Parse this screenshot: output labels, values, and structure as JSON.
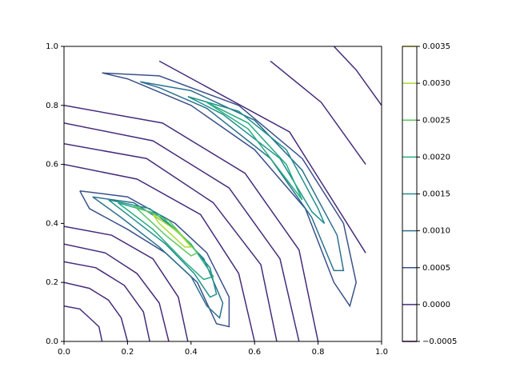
{
  "chart_data": {
    "type": "contour",
    "xlim": [
      0,
      1
    ],
    "ylim": [
      0,
      1
    ],
    "xticks": [
      {
        "value": 0,
        "label": "0.0"
      },
      {
        "value": 0.2,
        "label": "0.2"
      },
      {
        "value": 0.4,
        "label": "0.4"
      },
      {
        "value": 0.6,
        "label": "0.6"
      },
      {
        "value": 0.8,
        "label": "0.8"
      },
      {
        "value": 1,
        "label": "1.0"
      }
    ],
    "yticks": [
      {
        "value": 0,
        "label": "0.0"
      },
      {
        "value": 0.2,
        "label": "0.2"
      },
      {
        "value": 0.4,
        "label": "0.4"
      },
      {
        "value": 0.6,
        "label": "0.6"
      },
      {
        "value": 0.8,
        "label": "0.8"
      },
      {
        "value": 1,
        "label": "1.0"
      }
    ],
    "colorbar": {
      "lim": [
        -0.0005,
        0.0035
      ],
      "ticks": [
        {
          "value": -0.0005,
          "label": "−0.0005"
        },
        {
          "value": 0,
          "label": "0.0000"
        },
        {
          "value": 0.0005,
          "label": "0.0005"
        },
        {
          "value": 0.001,
          "label": "0.0010"
        },
        {
          "value": 0.0015,
          "label": "0.0015"
        },
        {
          "value": 0.002,
          "label": "0.0020"
        },
        {
          "value": 0.0025,
          "label": "0.0025"
        },
        {
          "value": 0.003,
          "label": "0.0030"
        },
        {
          "value": 0.0035,
          "label": "0.0035"
        }
      ],
      "colors": [
        "#440154",
        "#472c7a",
        "#3b518b",
        "#2c718e",
        "#21908d",
        "#27ad81",
        "#5cc863",
        "#aadc32",
        "#fde725"
      ]
    },
    "contours": [
      {
        "color": "#472c7a",
        "x": [
          0,
          0.05,
          0.08,
          0.11,
          0.12
        ],
        "y": [
          0.12,
          0.11,
          0.08,
          0.05,
          0
        ]
      },
      {
        "color": "#472c7a",
        "x": [
          0,
          0.08,
          0.14,
          0.18,
          0.2
        ],
        "y": [
          0.2,
          0.18,
          0.14,
          0.08,
          0
        ]
      },
      {
        "color": "#472c7a",
        "x": [
          0,
          0.1,
          0.19,
          0.25,
          0.27
        ],
        "y": [
          0.27,
          0.25,
          0.19,
          0.1,
          0
        ]
      },
      {
        "color": "#472c7a",
        "x": [
          0,
          0.13,
          0.23,
          0.3,
          0.33
        ],
        "y": [
          0.33,
          0.3,
          0.23,
          0.13,
          0
        ]
      },
      {
        "color": "#472c7a",
        "x": [
          0,
          0.15,
          0.28,
          0.36,
          0.39
        ],
        "y": [
          0.39,
          0.36,
          0.28,
          0.15,
          0
        ]
      },
      {
        "color": "#472c7a",
        "x": [
          0,
          0.23,
          0.43,
          0.55,
          0.6
        ],
        "y": [
          0.6,
          0.55,
          0.43,
          0.23,
          0
        ]
      },
      {
        "color": "#472c7a",
        "x": [
          0,
          0.26,
          0.47,
          0.62,
          0.67
        ],
        "y": [
          0.67,
          0.62,
          0.47,
          0.26,
          0
        ]
      },
      {
        "color": "#472c7a",
        "x": [
          0,
          0.28,
          0.52,
          0.68,
          0.74
        ],
        "y": [
          0.74,
          0.68,
          0.52,
          0.28,
          0
        ]
      },
      {
        "color": "#472c7a",
        "x": [
          0,
          0.31,
          0.57,
          0.74,
          0.8
        ],
        "y": [
          0.8,
          0.74,
          0.57,
          0.31,
          0
        ]
      },
      {
        "color": "#472c7a",
        "x": [
          0.3,
          0.71,
          0.95
        ],
        "y": [
          0.95,
          0.71,
          0.3
        ]
      },
      {
        "color": "#472c7a",
        "x": [
          0.65,
          0.81,
          0.95
        ],
        "y": [
          0.95,
          0.81,
          0.6
        ]
      },
      {
        "color": "#472c7a",
        "x": [
          0.85,
          0.92,
          1
        ],
        "y": [
          1,
          0.92,
          0.8
        ]
      },
      {
        "color": "#3b518b",
        "x": [
          0.05,
          0.2,
          0.35,
          0.45,
          0.52,
          0.52,
          0.48,
          0.42,
          0.32,
          0.2,
          0.08,
          0.05
        ],
        "y": [
          0.51,
          0.49,
          0.4,
          0.3,
          0.15,
          0.05,
          0.06,
          0.2,
          0.3,
          0.38,
          0.45,
          0.51
        ]
      },
      {
        "color": "#2c718e",
        "x": [
          0.09,
          0.22,
          0.35,
          0.44,
          0.5,
          0.49,
          0.45,
          0.4,
          0.3,
          0.18,
          0.09
        ],
        "y": [
          0.49,
          0.47,
          0.38,
          0.28,
          0.13,
          0.08,
          0.12,
          0.22,
          0.32,
          0.42,
          0.49
        ]
      },
      {
        "color": "#21908d",
        "x": [
          0.14,
          0.27,
          0.38,
          0.46,
          0.48,
          0.46,
          0.41,
          0.32,
          0.2,
          0.14
        ],
        "y": [
          0.48,
          0.45,
          0.35,
          0.25,
          0.16,
          0.15,
          0.23,
          0.33,
          0.43,
          0.48
        ]
      },
      {
        "color": "#27ad81",
        "x": [
          0.17,
          0.3,
          0.4,
          0.47,
          0.44,
          0.38,
          0.28,
          0.17
        ],
        "y": [
          0.47,
          0.43,
          0.33,
          0.22,
          0.21,
          0.27,
          0.38,
          0.47
        ]
      },
      {
        "color": "#5cc863",
        "x": [
          0.22,
          0.33,
          0.42,
          0.4,
          0.32,
          0.22
        ],
        "y": [
          0.46,
          0.41,
          0.3,
          0.29,
          0.36,
          0.46
        ]
      },
      {
        "color": "#aadc32",
        "x": [
          0.28,
          0.36,
          0.4,
          0.38,
          0.3,
          0.28
        ],
        "y": [
          0.43,
          0.37,
          0.32,
          0.32,
          0.4,
          0.43
        ]
      },
      {
        "color": "#3b518b",
        "x": [
          0.12,
          0.3,
          0.55,
          0.75,
          0.88,
          0.92,
          0.9,
          0.85,
          0.76,
          0.6,
          0.4,
          0.2,
          0.12
        ],
        "y": [
          0.91,
          0.9,
          0.8,
          0.62,
          0.4,
          0.2,
          0.12,
          0.2,
          0.45,
          0.65,
          0.8,
          0.89,
          0.91
        ]
      },
      {
        "color": "#2c718e",
        "x": [
          0.24,
          0.4,
          0.6,
          0.75,
          0.86,
          0.88,
          0.85,
          0.78,
          0.65,
          0.45,
          0.3,
          0.24
        ],
        "y": [
          0.88,
          0.85,
          0.75,
          0.58,
          0.36,
          0.24,
          0.24,
          0.42,
          0.62,
          0.79,
          0.86,
          0.88
        ]
      },
      {
        "color": "#21908d",
        "x": [
          0.39,
          0.55,
          0.7,
          0.8,
          0.82,
          0.78,
          0.68,
          0.5,
          0.39
        ],
        "y": [
          0.83,
          0.78,
          0.65,
          0.45,
          0.4,
          0.44,
          0.62,
          0.77,
          0.83
        ]
      },
      {
        "color": "#27ad81",
        "x": [
          0.45,
          0.58,
          0.7,
          0.75,
          0.7,
          0.58,
          0.45
        ],
        "y": [
          0.81,
          0.74,
          0.6,
          0.48,
          0.55,
          0.72,
          0.81
        ]
      }
    ]
  }
}
